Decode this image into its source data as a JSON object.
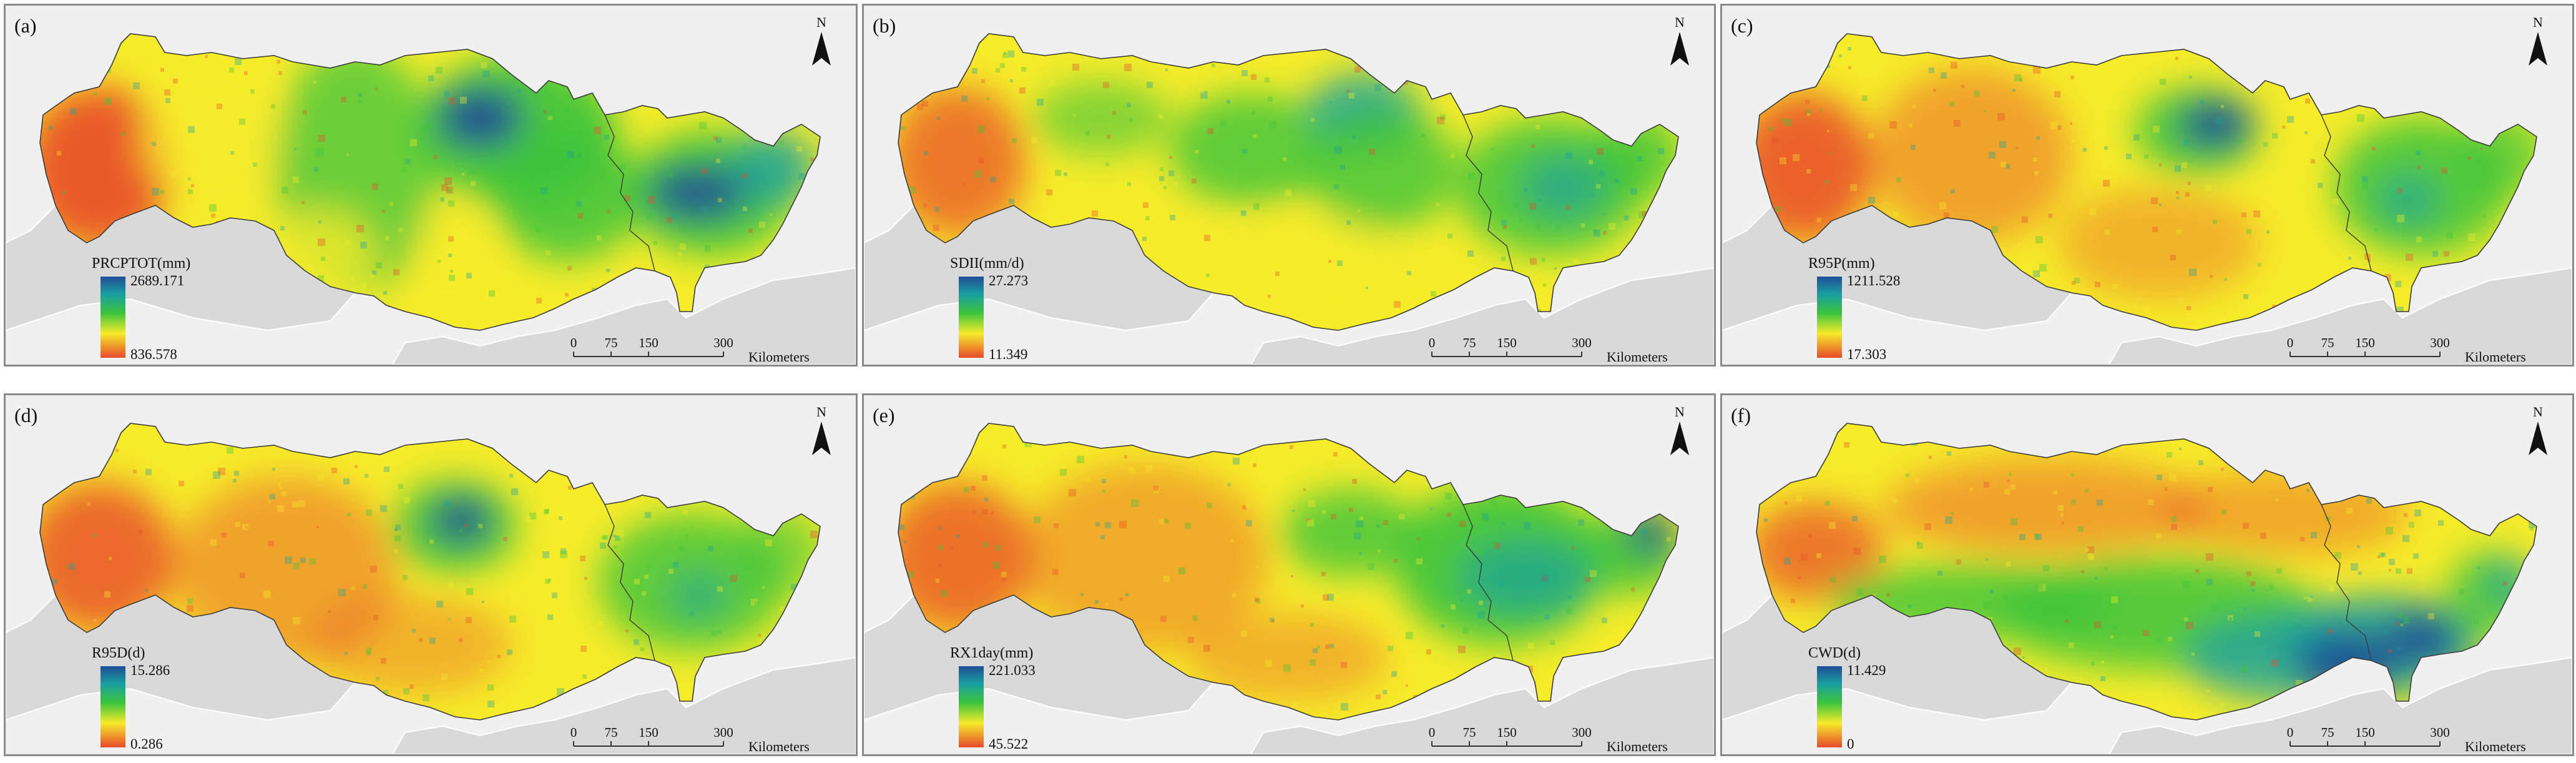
{
  "figure": {
    "panels": [
      {
        "label": "(a)",
        "index_name": "PRCPTOT(mm)",
        "legend_max": "2689.171",
        "legend_min": "836.578",
        "pattern": "a"
      },
      {
        "label": "(b)",
        "index_name": "SDII(mm/d)",
        "legend_max": "27.273",
        "legend_min": "11.349",
        "pattern": "b"
      },
      {
        "label": "(c)",
        "index_name": "R95P(mm)",
        "legend_max": "1211.528",
        "legend_min": "17.303",
        "pattern": "c"
      },
      {
        "label": "(d)",
        "index_name": "R95D(d)",
        "legend_max": "15.286",
        "legend_min": "0.286",
        "pattern": "d"
      },
      {
        "label": "(e)",
        "index_name": "RX1day(mm)",
        "legend_max": "221.033",
        "legend_min": "45.522",
        "pattern": "e"
      },
      {
        "label": "(f)",
        "index_name": "CWD(d)",
        "legend_max": "11.429",
        "legend_min": "0",
        "pattern": "f"
      }
    ],
    "north_label": "N",
    "scale_ticks": [
      "0",
      "75",
      "150",
      "300"
    ],
    "scale_unit": "Kilometers",
    "colors": {
      "ramp_high": "#1f4e96",
      "ramp_mid_high": "#1aa0a0",
      "ramp_mid": "#3cc43c",
      "ramp_mid_low": "#f6ec2a",
      "ramp_low": "#e84a2a",
      "background": "#f0f0f0",
      "surrounding_land": "#d9d9d9",
      "boundary": "#3a3a3a"
    }
  }
}
